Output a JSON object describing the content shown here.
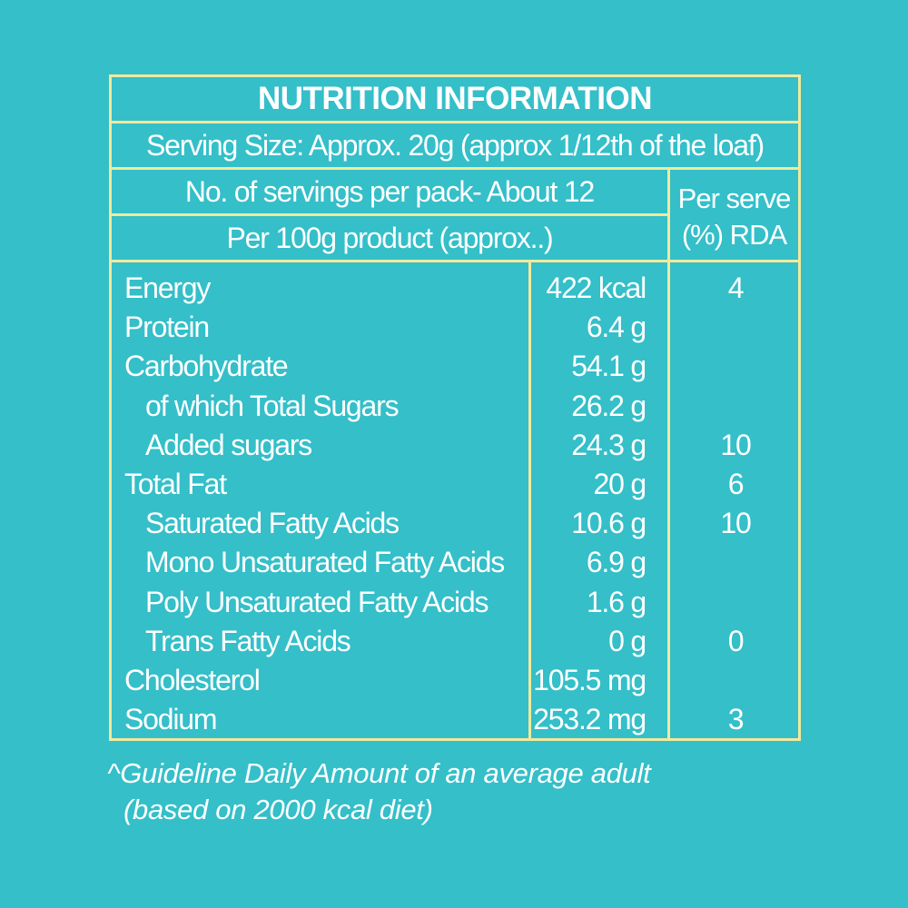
{
  "title": "NUTRITION INFORMATION",
  "serving_size": "Serving Size: Approx. 20g (approx 1/12th of the loaf)",
  "servings_per_pack": "No. of servings per pack- About 12",
  "per_100g": "Per 100g product (approx..)",
  "rda_header": {
    "line1": "Per serve",
    "line2": "(%) RDA"
  },
  "rows": [
    {
      "name": "Energy",
      "value": "422 kcal",
      "rda": "4"
    },
    {
      "name": "Protein",
      "value": "6.4 g",
      "rda": ""
    },
    {
      "name": "Carbohydrate",
      "value": "54.1 g",
      "rda": ""
    },
    {
      "name": "of which Total Sugars",
      "value": "26.2 g",
      "rda": ""
    },
    {
      "name": "Added sugars",
      "value": "24.3 g",
      "rda": "10"
    },
    {
      "name": "Total Fat",
      "value": "20 g",
      "rda": "6"
    },
    {
      "name": "Saturated Fatty Acids",
      "value": "10.6 g",
      "rda": "10"
    },
    {
      "name": "Mono Unsaturated Fatty Acids",
      "value": "6.9 g",
      "rda": ""
    },
    {
      "name": "Poly Unsaturated Fatty Acids",
      "value": "1.6 g",
      "rda": ""
    },
    {
      "name": "Trans Fatty Acids",
      "value": "0 g",
      "rda": "0"
    },
    {
      "name": "Cholesterol",
      "value": "105.5 mg",
      "rda": ""
    },
    {
      "name": "Sodium",
      "value": "253.2 mg",
      "rda": "3"
    }
  ],
  "footnote": {
    "line1": "^Guideline Daily Amount of an average adult",
    "line2": "(based on 2000 kcal diet)"
  },
  "colors": {
    "background": "#34bfc9",
    "border": "#f1ea9c",
    "text": "#ffffff"
  }
}
